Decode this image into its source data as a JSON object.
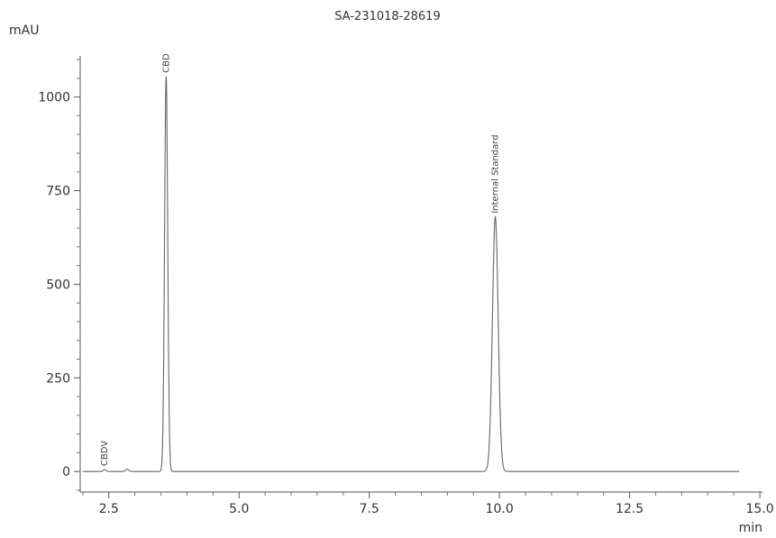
{
  "chart_data": {
    "type": "line",
    "title": "SA-231018-28619",
    "ylabel": "mAU",
    "xlabel": "min",
    "xlim": [
      1.95,
      15.05
    ],
    "ylim": [
      -55,
      1110
    ],
    "x_ticks": [
      "2.5",
      "5.0",
      "7.5",
      "10.0",
      "12.5",
      "15.0"
    ],
    "y_ticks": [
      "0",
      "250",
      "500",
      "750",
      "1000"
    ],
    "x_tick_values": [
      2.5,
      5.0,
      7.5,
      10.0,
      12.5,
      15.0
    ],
    "y_tick_values": [
      0,
      250,
      500,
      750,
      1000
    ],
    "x_end": 14.6,
    "grid": false,
    "legend": "none",
    "peaks": [
      {
        "label": "CBDV",
        "rt": 2.42,
        "height": 5,
        "width": 0.025
      },
      {
        "label": "",
        "rt": 2.85,
        "height": 6,
        "width": 0.03
      },
      {
        "label": "CBD",
        "rt": 3.6,
        "height": 1055,
        "width": 0.03
      },
      {
        "label": "Internal Standard",
        "rt": 9.92,
        "height": 680,
        "width": 0.055
      }
    ]
  }
}
